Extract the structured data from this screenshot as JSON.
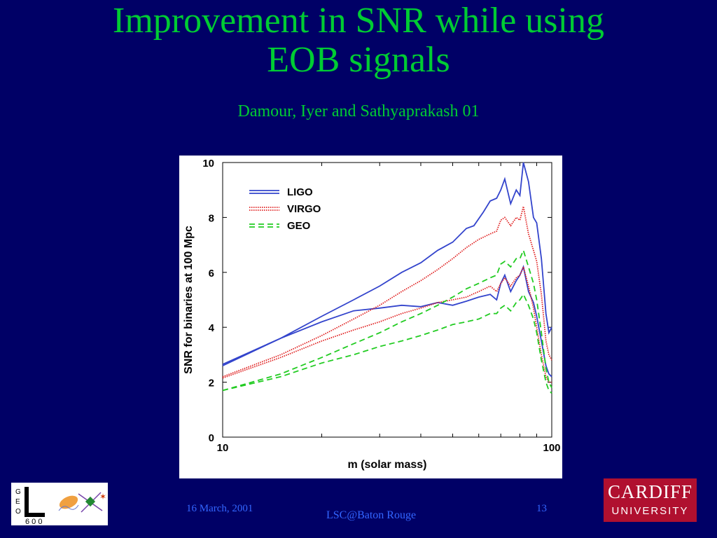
{
  "slide": {
    "title_line1": "Improvement in SNR while using",
    "title_line2": "EOB signals",
    "subtitle": "Damour, Iyer and Sathyaprakash 01",
    "footer_date": "16 March, 2001",
    "footer_center": "LSC@Baton Rouge",
    "page_number": "13"
  },
  "logos": {
    "geo": {
      "letters": [
        "G",
        "E",
        "O"
      ],
      "number": "6 0 0"
    },
    "cardiff": {
      "line1": "CARDIFF",
      "line2": "UNIVERSITY"
    }
  },
  "colors": {
    "background": "#000066",
    "title": "#00cc33",
    "footer": "#3366ff",
    "ligo": "#3344cc",
    "virgo": "#e02020",
    "geo": "#22cc22"
  },
  "chart_data": {
    "type": "line",
    "title": "",
    "xlabel": "m (solar mass)",
    "ylabel": "SNR for binaries at 100 Mpc",
    "x_scale": "log",
    "xlim": [
      10,
      100
    ],
    "ylim": [
      0,
      10
    ],
    "x_tick_labels": [
      "10",
      "100"
    ],
    "y_tick_labels": [
      "0",
      "2",
      "4",
      "6",
      "8",
      "10"
    ],
    "legend_position": "top-left",
    "series": [
      {
        "name": "LIGO",
        "detector": "LIGO",
        "style": "solid",
        "color": "#3344cc",
        "x": [
          10,
          15,
          20,
          25,
          30,
          35,
          40,
          45,
          50,
          55,
          58,
          62,
          65,
          68,
          70,
          72,
          75,
          78,
          80,
          82,
          85,
          88,
          90,
          93,
          96,
          98,
          100
        ],
        "y": [
          2.65,
          3.6,
          4.4,
          5.0,
          5.5,
          6.0,
          6.35,
          6.8,
          7.1,
          7.6,
          7.7,
          8.2,
          8.6,
          8.7,
          9.0,
          9.4,
          8.5,
          9.0,
          8.8,
          10.0,
          9.3,
          8.0,
          7.8,
          6.5,
          4.5,
          3.8,
          4.0
        ]
      },
      {
        "name": "",
        "detector": "LIGO",
        "style": "solid",
        "color": "#3344cc",
        "x": [
          10,
          15,
          20,
          25,
          30,
          35,
          40,
          45,
          50,
          55,
          60,
          65,
          68,
          70,
          72,
          75,
          78,
          80,
          82,
          85,
          88,
          90,
          93,
          96,
          98,
          100
        ],
        "y": [
          2.6,
          3.6,
          4.2,
          4.6,
          4.7,
          4.8,
          4.75,
          4.9,
          4.8,
          4.95,
          5.1,
          5.2,
          5.0,
          5.6,
          5.9,
          5.3,
          5.7,
          5.9,
          6.2,
          5.3,
          4.9,
          4.4,
          3.5,
          2.6,
          2.3,
          2.2
        ]
      },
      {
        "name": "VIRGO",
        "detector": "VIRGO",
        "style": "dotted",
        "color": "#e02020",
        "x": [
          10,
          15,
          20,
          25,
          30,
          35,
          40,
          45,
          50,
          55,
          60,
          65,
          68,
          70,
          72,
          75,
          78,
          80,
          82,
          85,
          88,
          90,
          93,
          96,
          98,
          100
        ],
        "y": [
          2.2,
          3.0,
          3.7,
          4.3,
          4.8,
          5.3,
          5.7,
          6.1,
          6.5,
          6.9,
          7.2,
          7.4,
          7.5,
          7.9,
          8.0,
          7.7,
          8.0,
          7.9,
          8.4,
          7.4,
          6.8,
          6.4,
          5.2,
          3.5,
          3.0,
          2.8
        ]
      },
      {
        "name": "",
        "detector": "VIRGO",
        "style": "dotted",
        "color": "#e02020",
        "x": [
          10,
          15,
          20,
          25,
          30,
          35,
          40,
          45,
          50,
          55,
          60,
          65,
          68,
          70,
          72,
          75,
          78,
          80,
          82,
          85,
          88,
          90,
          93,
          96,
          98,
          100
        ],
        "y": [
          2.15,
          2.9,
          3.5,
          3.9,
          4.2,
          4.5,
          4.7,
          4.9,
          5.0,
          5.1,
          5.3,
          5.5,
          5.3,
          5.6,
          5.8,
          5.5,
          5.8,
          5.9,
          6.2,
          5.5,
          4.7,
          4.0,
          3.0,
          2.2,
          2.0,
          2.0
        ]
      },
      {
        "name": "GEO",
        "detector": "GEO",
        "style": "dashed",
        "color": "#22cc22",
        "x": [
          10,
          15,
          20,
          25,
          30,
          35,
          40,
          45,
          50,
          55,
          60,
          65,
          68,
          70,
          72,
          75,
          78,
          80,
          82,
          85,
          88,
          90,
          93,
          96,
          98,
          100
        ],
        "y": [
          1.7,
          2.3,
          2.9,
          3.4,
          3.8,
          4.2,
          4.5,
          4.8,
          5.1,
          5.4,
          5.6,
          5.8,
          5.9,
          6.3,
          6.4,
          6.2,
          6.5,
          6.5,
          6.8,
          6.2,
          5.6,
          5.0,
          3.8,
          2.5,
          2.0,
          1.8
        ]
      },
      {
        "name": "",
        "detector": "GEO",
        "style": "dashed",
        "color": "#22cc22",
        "x": [
          10,
          15,
          20,
          25,
          30,
          35,
          40,
          45,
          50,
          55,
          60,
          65,
          68,
          70,
          72,
          75,
          78,
          80,
          82,
          85,
          88,
          90,
          93,
          96,
          98,
          100
        ],
        "y": [
          1.7,
          2.2,
          2.7,
          3.0,
          3.3,
          3.5,
          3.7,
          3.9,
          4.1,
          4.2,
          4.3,
          4.5,
          4.5,
          4.7,
          4.8,
          4.6,
          4.9,
          5.0,
          5.2,
          4.8,
          4.3,
          3.8,
          2.8,
          2.0,
          1.7,
          1.6
        ]
      }
    ]
  }
}
